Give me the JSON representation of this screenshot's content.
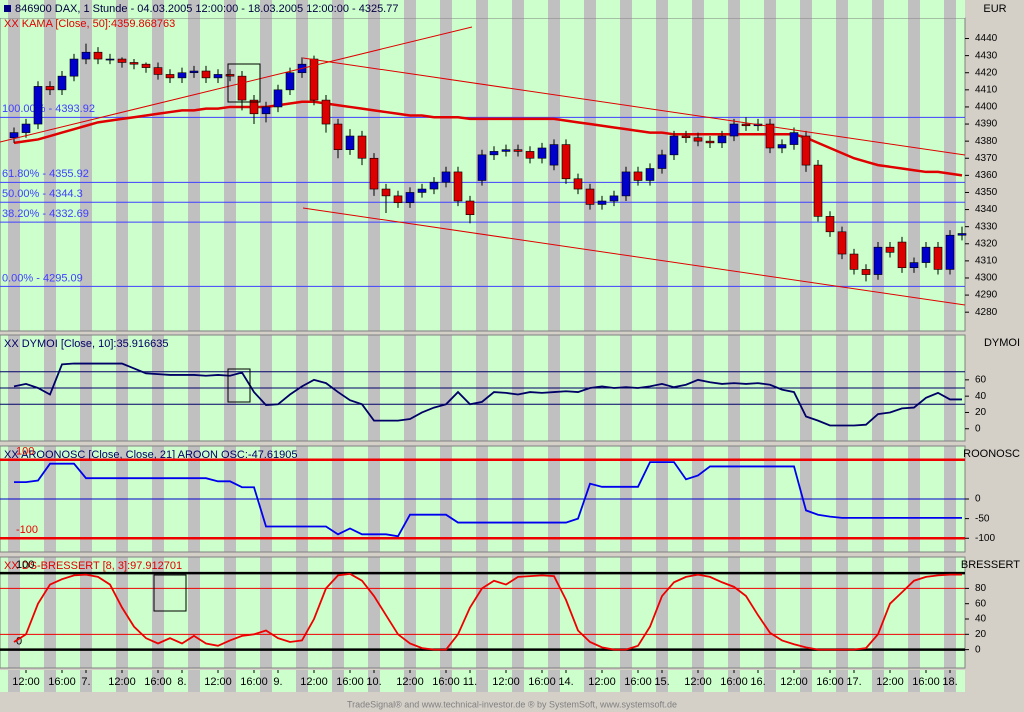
{
  "chart_data": [
    {
      "type": "candlestick",
      "title": "846900 DAX, 1 Stunde - 04.03.2005 12:00:00 - 18.03.2005 12:00:00 - 4325.77",
      "axis_label": "EUR",
      "categories": [
        null,
        "12:00",
        null,
        null,
        "16:00",
        null,
        "7.",
        null,
        null,
        "12:00",
        null,
        null,
        "16:00",
        null,
        "8.",
        null,
        null,
        "12:00",
        null,
        null,
        "16:00",
        null,
        "9.",
        null,
        null,
        "12:00",
        null,
        null,
        "16:00",
        null,
        "10.",
        null,
        null,
        "12:00",
        null,
        null,
        "16:00",
        null,
        "11.",
        null,
        null,
        "12:00",
        null,
        null,
        "16:00",
        null,
        "14.",
        null,
        null,
        "12:00",
        null,
        null,
        "16:00",
        null,
        "15.",
        null,
        null,
        "12:00",
        null,
        null,
        "16:00",
        null,
        "16.",
        null,
        null,
        "12:00",
        null,
        null,
        "16:00",
        null,
        "17.",
        null,
        null,
        "12:00",
        null,
        null,
        "16:00",
        null,
        "18.",
        null
      ],
      "open": [
        4382,
        4385,
        4390,
        4412,
        4410,
        4418,
        4428,
        4432,
        4428,
        4428,
        4426,
        4425,
        4423,
        4419,
        4417,
        4420,
        4421,
        4417,
        4419,
        4418,
        4404,
        4396,
        4400,
        4410,
        4420,
        4428,
        4404,
        4390,
        4375,
        4383,
        4370,
        4352,
        4348,
        4344,
        4350,
        4352,
        4356,
        4362,
        4345,
        4357,
        4372,
        4374,
        4375,
        4374,
        4370,
        4366,
        4378,
        4358,
        4352,
        4343,
        4345,
        4348,
        4362,
        4357,
        4364,
        4372,
        4383,
        4382,
        4380,
        4379,
        4383,
        4390,
        4389,
        4390,
        4376,
        4378,
        4383,
        4366,
        4336,
        4327,
        4314,
        4305,
        4302,
        4318,
        4321,
        4306,
        4309,
        4318,
        4305,
        4325
      ],
      "high": [
        4388,
        4393,
        4415,
        4415,
        4421,
        4431,
        4437,
        4435,
        4431,
        4429,
        4428,
        4426,
        4426,
        4422,
        4423,
        4424,
        4424,
        4422,
        4422,
        4421,
        4407,
        4403,
        4413,
        4423,
        4429,
        4430,
        4407,
        4393,
        4387,
        4386,
        4373,
        4355,
        4351,
        4353,
        4355,
        4359,
        4365,
        4365,
        4348,
        4375,
        4377,
        4378,
        4378,
        4377,
        4379,
        4381,
        4381,
        4361,
        4355,
        4348,
        4351,
        4365,
        4365,
        4367,
        4375,
        4386,
        4386,
        4385,
        4383,
        4386,
        4393,
        4394,
        4393,
        4393,
        4381,
        4388,
        4386,
        4369,
        4339,
        4330,
        4317,
        4308,
        4321,
        4321,
        4324,
        4312,
        4321,
        4321,
        4328,
        4330
      ],
      "low": [
        4379,
        4382,
        4387,
        4407,
        4407,
        4415,
        4425,
        4425,
        4425,
        4423,
        4422,
        4420,
        4416,
        4414,
        4414,
        4417,
        4414,
        4414,
        4415,
        4398,
        4390,
        4391,
        4397,
        4407,
        4417,
        4401,
        4385,
        4370,
        4372,
        4366,
        4348,
        4338,
        4341,
        4341,
        4347,
        4349,
        4353,
        4342,
        4332,
        4354,
        4369,
        4371,
        4371,
        4367,
        4367,
        4363,
        4355,
        4349,
        4340,
        4340,
        4342,
        4345,
        4354,
        4354,
        4361,
        4369,
        4379,
        4377,
        4376,
        4376,
        4380,
        4386,
        4386,
        4373,
        4373,
        4375,
        4362,
        4333,
        4324,
        4311,
        4302,
        4298,
        4299,
        4312,
        4303,
        4303,
        4306,
        4302,
        4302,
        4322
      ],
      "close": [
        4385,
        4390,
        4412,
        4410,
        4418,
        4428,
        4432,
        4428,
        4428,
        4426,
        4425,
        4423,
        4419,
        4417,
        4420,
        4421,
        4417,
        4419,
        4418,
        4404,
        4396,
        4400,
        4410,
        4420,
        4425,
        4404,
        4390,
        4375,
        4383,
        4370,
        4352,
        4348,
        4344,
        4350,
        4352,
        4356,
        4362,
        4345,
        4337,
        4372,
        4374,
        4375,
        4374,
        4370,
        4376,
        4378,
        4358,
        4352,
        4343,
        4345,
        4348,
        4362,
        4357,
        4364,
        4372,
        4383,
        4382,
        4380,
        4379,
        4383,
        4390,
        4389,
        4390,
        4376,
        4378,
        4385,
        4366,
        4336,
        4327,
        4314,
        4305,
        4302,
        4318,
        4315,
        4306,
        4309,
        4318,
        4305,
        4325,
        4326
      ],
      "up_color": "#0000cc",
      "down_color": "#dd0000",
      "ylim": [
        4269,
        4452
      ],
      "yticks": [
        4280,
        4290,
        4300,
        4310,
        4320,
        4330,
        4340,
        4350,
        4360,
        4370,
        4380,
        4390,
        4400,
        4410,
        4420,
        4430,
        4440
      ],
      "fib": [
        {
          "label": "100.00% - 4393.92",
          "value": 4393.92
        },
        {
          "label": "61.80% - 4355.92",
          "value": 4355.92
        },
        {
          "label": "50.00% - 4344.3",
          "value": 4344.3
        },
        {
          "label": "38.20% - 4332.69",
          "value": 4332.69
        },
        {
          "label": "0.00% - 4295.09",
          "value": 4295.09
        }
      ],
      "fib_color": "#4040ff",
      "indicator": {
        "name": "XX KAMA [Close, 50]:4359.868763",
        "color": "#e00000",
        "values": [
          4379,
          4380,
          4381,
          4383,
          4385,
          4387,
          4389,
          4391,
          4392,
          4393,
          4394,
          4395,
          4396,
          4397,
          4398,
          4398,
          4399,
          4399,
          4400,
          4400,
          4400,
          4400,
          4401,
          4402,
          4403,
          4403,
          4402,
          4401,
          4400,
          4399,
          4398,
          4397,
          4396,
          4395,
          4395,
          4394,
          4394,
          4394,
          4393,
          4393,
          4393,
          4393,
          4393,
          4393,
          4393,
          4393,
          4392,
          4391,
          4390,
          4389,
          4388,
          4387,
          4386,
          4385,
          4385,
          4384,
          4384,
          4384,
          4384,
          4384,
          4384,
          4384,
          4384,
          4384,
          4384,
          4384,
          4382,
          4379,
          4376,
          4373,
          4370,
          4368,
          4366,
          4365,
          4364,
          4363,
          4362,
          4362,
          4361,
          4360
        ]
      }
    },
    {
      "type": "line",
      "title": "XX DYMOI [Close, 10]:35.916635",
      "axis_label": "DYMOI",
      "series": [
        {
          "color": "#000066",
          "values": [
            52,
            55,
            50,
            42,
            79,
            80,
            80,
            80,
            80,
            80,
            74,
            68,
            67,
            66,
            66,
            66,
            65,
            66,
            65,
            69,
            45,
            29,
            30,
            42,
            52,
            60,
            56,
            45,
            35,
            30,
            10,
            10,
            10,
            12,
            20,
            26,
            30,
            45,
            30,
            33,
            45,
            44,
            42,
            45,
            44,
            45,
            46,
            45,
            50,
            52,
            50,
            51,
            50,
            52,
            55,
            51,
            54,
            60,
            57,
            55,
            56,
            55,
            56,
            54,
            48,
            45,
            15,
            10,
            4,
            4,
            4,
            5,
            18,
            20,
            25,
            26,
            38,
            44,
            36,
            36
          ]
        }
      ],
      "ylim": [
        -15,
        115
      ],
      "yticks": [
        0,
        20,
        40,
        60
      ],
      "bands": [
        70,
        50,
        30
      ],
      "band_color": "#000066"
    },
    {
      "type": "line",
      "title": "XX AROONOSC [Close, Close, 21] AROON OSC:-47.61905",
      "axis_label": "ROONOSC",
      "series": [
        {
          "color": "#0000ee",
          "values": [
            43,
            43,
            47,
            90,
            90,
            90,
            53,
            53,
            53,
            53,
            53,
            53,
            53,
            53,
            53,
            53,
            53,
            45,
            45,
            30,
            30,
            -70,
            -70,
            -70,
            -70,
            -70,
            -70,
            -90,
            -75,
            -90,
            -90,
            -90,
            -95,
            -40,
            -40,
            -40,
            -40,
            -60,
            -60,
            -60,
            -60,
            -60,
            -60,
            -60,
            -60,
            -60,
            -60,
            -50,
            39,
            31,
            31,
            31,
            31,
            94,
            94,
            94,
            50,
            60,
            83,
            83,
            83,
            83,
            83,
            83,
            83,
            83,
            -29,
            -40,
            -45,
            -48,
            -48,
            -48,
            -48,
            -48,
            -48,
            -48,
            -48,
            -48,
            -48,
            -48
          ]
        }
      ],
      "ylim": [
        -135,
        135
      ],
      "yticks": [
        0,
        -50,
        -100
      ],
      "levels": [
        100,
        -100
      ],
      "level_color": "#ee0000",
      "bands": [
        0
      ],
      "band_color": "#0000cc"
    },
    {
      "type": "line",
      "title": "XX DS-BRESSERT [8, 3]:97.912701",
      "axis_label": "BRESSERT",
      "series": [
        {
          "color": "#ee0000",
          "values": [
            10,
            20,
            60,
            85,
            92,
            97,
            98,
            95,
            85,
            55,
            30,
            15,
            8,
            15,
            8,
            18,
            8,
            5,
            12,
            18,
            20,
            25,
            15,
            10,
            12,
            40,
            80,
            97,
            99,
            90,
            70,
            45,
            20,
            8,
            2,
            0,
            0,
            20,
            55,
            80,
            90,
            85,
            95,
            96,
            97,
            96,
            65,
            25,
            10,
            3,
            0,
            0,
            5,
            30,
            70,
            88,
            95,
            98,
            95,
            88,
            82,
            70,
            45,
            22,
            12,
            7,
            3,
            0,
            0,
            0,
            0,
            2,
            20,
            60,
            75,
            90,
            95,
            97,
            98,
            98
          ]
        }
      ],
      "ylim": [
        -24,
        121
      ],
      "yticks": [
        0,
        20,
        40,
        60,
        80
      ],
      "levels": [
        100,
        0
      ],
      "level_color": "#000000",
      "bands": [
        80,
        20
      ],
      "band_color": "#ee0000"
    }
  ],
  "footer": "TradeSignal® and www.technical-investor.de ® by SystemSoft, www.systemsoft.de"
}
